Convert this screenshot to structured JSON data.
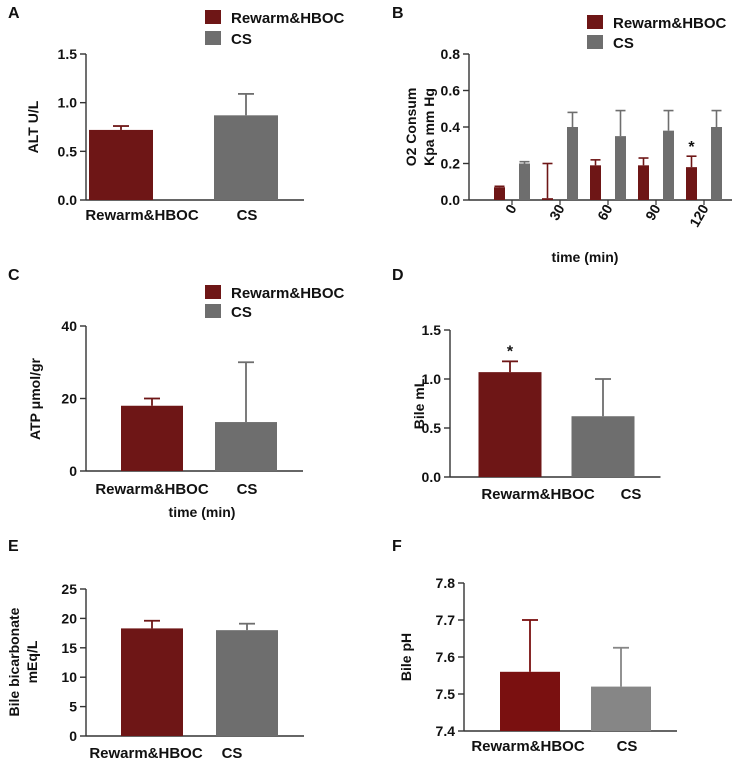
{
  "colors": {
    "rewarm": "#6e1616",
    "rewarm_f": "#7a1010",
    "cs": "#6e6e6e",
    "cs_f": "#868686"
  },
  "chart_data": [
    {
      "id": "A",
      "type": "bar",
      "panel_label": "A",
      "title": "",
      "xlabel": "",
      "ylabel": "ALT U/L",
      "categories": [
        "Rewarm&HBOC",
        "CS"
      ],
      "values": [
        0.72,
        0.87
      ],
      "errors": [
        0.04,
        0.22
      ],
      "ylim": [
        0,
        1.5
      ],
      "yticks": [
        "0.0",
        "0.5",
        "1.0",
        "1.5"
      ],
      "legend": [
        "Rewarm&HBOC",
        "CS"
      ],
      "annotations": []
    },
    {
      "id": "B",
      "type": "bar",
      "panel_label": "B",
      "title": "",
      "xlabel": "time (min)",
      "ylabel": "O2 Consum Kpa mm Hg",
      "ylabel_lines": [
        "O2 Consum",
        "Kpa mm Hg"
      ],
      "categories": [
        "0",
        "30",
        "60",
        "90",
        "120"
      ],
      "series": [
        {
          "name": "Rewarm&HBOC",
          "values": [
            0.07,
            0.01,
            0.19,
            0.19,
            0.18
          ],
          "errors": [
            0.005,
            0.19,
            0.03,
            0.04,
            0.06
          ]
        },
        {
          "name": "CS",
          "values": [
            0.2,
            0.4,
            0.35,
            0.38,
            0.4
          ],
          "errors": [
            0.01,
            0.08,
            0.14,
            0.11,
            0.09
          ]
        }
      ],
      "ylim": [
        0,
        0.8
      ],
      "yticks": [
        "0.0",
        "0.2",
        "0.4",
        "0.6",
        "0.8"
      ],
      "annotations": [
        {
          "text": "*",
          "category": "120",
          "series": 0
        }
      ]
    },
    {
      "id": "C",
      "type": "bar",
      "panel_label": "C",
      "title": "",
      "xlabel": "time (min)",
      "ylabel": "ATP μmol/gr",
      "categories": [
        "Rewarm&HBOC",
        "CS"
      ],
      "values": [
        18,
        13.5
      ],
      "errors": [
        2,
        16.5
      ],
      "ylim": [
        0,
        40
      ],
      "yticks": [
        "0",
        "20",
        "40"
      ],
      "legend": [
        "Rewarm&HBOC",
        "CS"
      ],
      "annotations": []
    },
    {
      "id": "D",
      "type": "bar",
      "panel_label": "D",
      "title": "",
      "xlabel": "",
      "ylabel": "Bile mL",
      "categories": [
        "Rewarm&HBOC",
        "CS"
      ],
      "values": [
        1.07,
        0.62
      ],
      "errors": [
        0.11,
        0.38
      ],
      "ylim": [
        0,
        1.5
      ],
      "yticks": [
        "0.0",
        "0.5",
        "1.0",
        "1.5"
      ],
      "annotations": [
        {
          "text": "*",
          "category": "Rewarm&HBOC"
        }
      ]
    },
    {
      "id": "E",
      "type": "bar",
      "panel_label": "E",
      "title": "",
      "xlabel": "",
      "ylabel": "Bile bicarbonate mEq/L",
      "ylabel_lines": [
        "Bile bicarbonate",
        "mEq/L"
      ],
      "categories": [
        "Rewarm&HBOC",
        "CS"
      ],
      "values": [
        18.3,
        18.0
      ],
      "errors": [
        1.3,
        1.1
      ],
      "ylim": [
        0,
        25
      ],
      "yticks": [
        "0",
        "5",
        "10",
        "15",
        "20",
        "25"
      ],
      "annotations": []
    },
    {
      "id": "F",
      "type": "bar",
      "panel_label": "F",
      "title": "",
      "xlabel": "",
      "ylabel": "Bile pH",
      "categories": [
        "Rewarm&HBOC",
        "CS"
      ],
      "values": [
        7.56,
        7.52
      ],
      "errors": [
        0.14,
        0.105
      ],
      "ylim": [
        7.4,
        7.8
      ],
      "yticks": [
        "7.4",
        "7.5",
        "7.6",
        "7.7",
        "7.8"
      ],
      "annotations": []
    }
  ]
}
